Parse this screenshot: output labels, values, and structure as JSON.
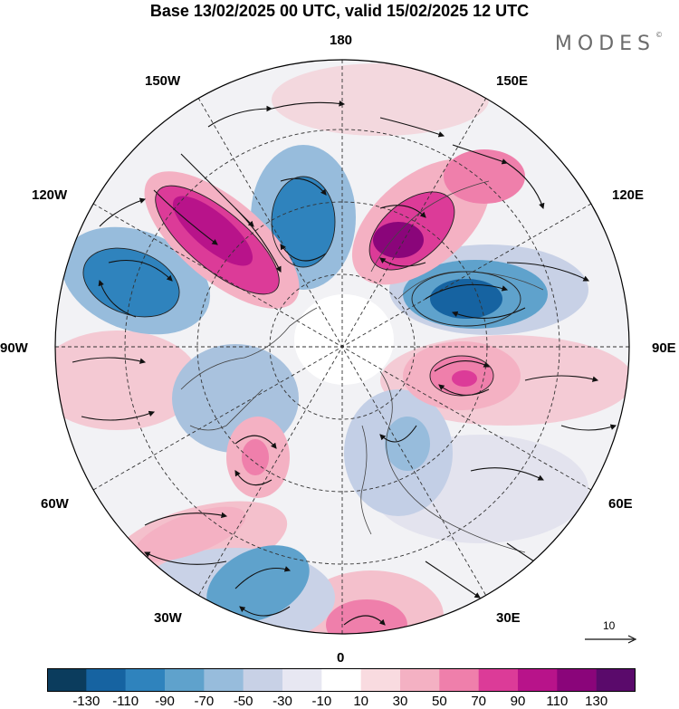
{
  "header": {
    "title": "Base 13/02/2025 00 UTC, valid 15/02/2025 12 UTC",
    "brand": "MODES",
    "brand_mark": "©"
  },
  "map": {
    "projection": "north-polar-stereographic",
    "labels": {
      "top": "180",
      "bottom": "0",
      "left": "90W",
      "right": "90E",
      "upper_left": "150W",
      "upper_right": "150E",
      "mid_upper_left": "120W",
      "mid_upper_right": "120E",
      "mid_lower_left": "60W",
      "mid_lower_right": "60E",
      "lower_left": "30W",
      "lower_right": "30E"
    },
    "reference_vector": {
      "label": "10"
    },
    "field_colors": {
      "strong_positive": "#a0087f",
      "positive": "#f2a8c6",
      "negative": "#4a8cc0",
      "neutral": "#ececf4"
    }
  },
  "colorbar": {
    "ticks": [
      "-130",
      "-110",
      "-90",
      "-70",
      "-50",
      "-30",
      "-10",
      "10",
      "30",
      "50",
      "70",
      "90",
      "110",
      "130"
    ],
    "colors": [
      "#0b3c5d",
      "#1663a1",
      "#2f83bd",
      "#5fa2cc",
      "#97bcdc",
      "#c8d1e6",
      "#e7e7f2",
      "#ffffff",
      "#f9dbe0",
      "#f4b1c3",
      "#ef7fab",
      "#dc3b98",
      "#b8138a",
      "#8a057a",
      "#5a0a6b"
    ]
  }
}
